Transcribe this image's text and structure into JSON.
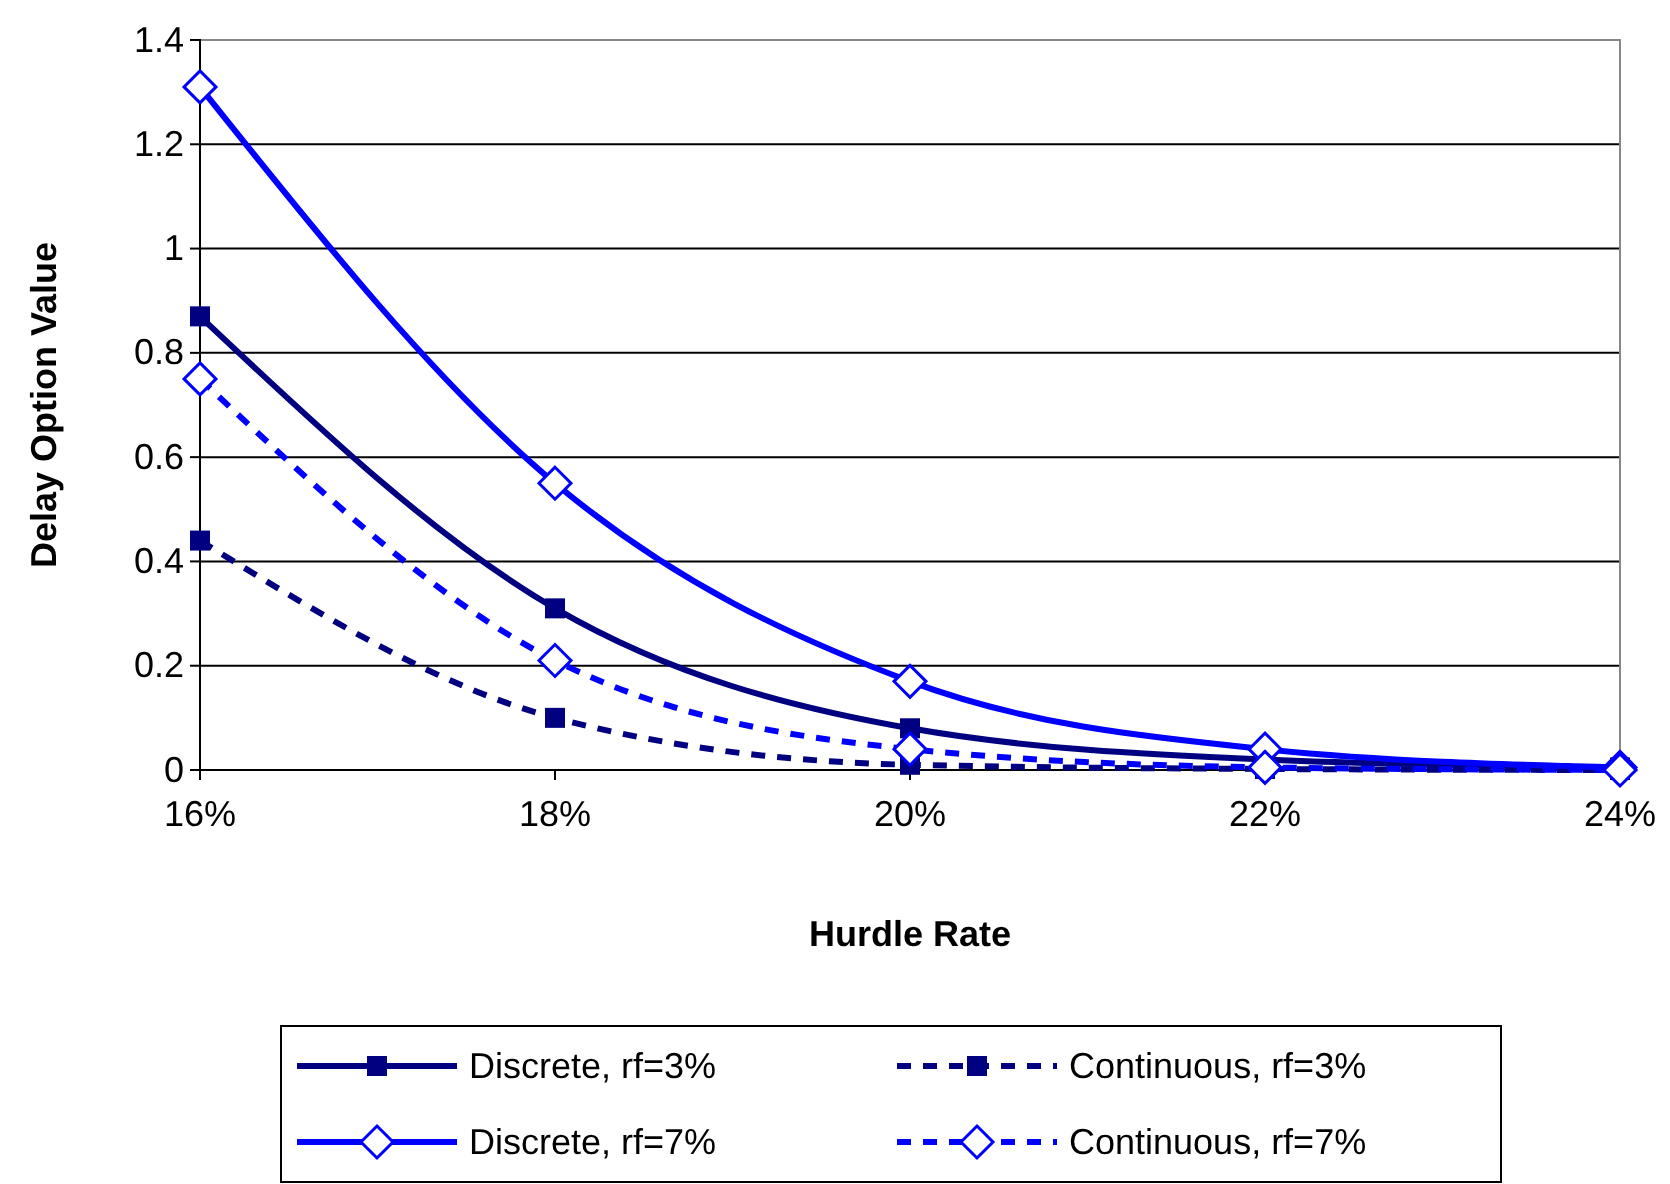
{
  "chart_data": {
    "type": "line",
    "xlabel": "Hurdle Rate",
    "ylabel": "Delay Option Value",
    "x": [
      16,
      18,
      20,
      22,
      24
    ],
    "xlim": [
      16,
      24
    ],
    "xticks": [
      {
        "value": 16,
        "label": "16%"
      },
      {
        "value": 18,
        "label": "18%"
      },
      {
        "value": 20,
        "label": "20%"
      },
      {
        "value": 22,
        "label": "22%"
      },
      {
        "value": 24,
        "label": "24%"
      }
    ],
    "ylim": [
      0,
      1.4
    ],
    "yticks": [
      0,
      0.2,
      0.4,
      0.6,
      0.8,
      1,
      1.2,
      1.4
    ],
    "grid": "y",
    "legend": "bottom",
    "series": [
      {
        "name": "Discrete, rf=3%",
        "color": "#000080",
        "values": [
          0.87,
          0.31,
          0.08,
          0.02,
          0.005
        ],
        "marker": "square",
        "line_style": "solid"
      },
      {
        "name": "Continuous, rf=3%",
        "color": "#000080",
        "values": [
          0.44,
          0.1,
          0.01,
          0.002,
          0.0
        ],
        "marker": "square",
        "line_style": "dashed"
      },
      {
        "name": "Discrete, rf=7%",
        "color": "#0000ff",
        "values": [
          1.31,
          0.55,
          0.17,
          0.04,
          0.005
        ],
        "marker": "diamond",
        "line_style": "solid"
      },
      {
        "name": "Continuous, rf=7%",
        "color": "#0000ff",
        "values": [
          0.75,
          0.21,
          0.04,
          0.005,
          0.0
        ],
        "marker": "diamond",
        "line_style": "dashed"
      }
    ]
  }
}
